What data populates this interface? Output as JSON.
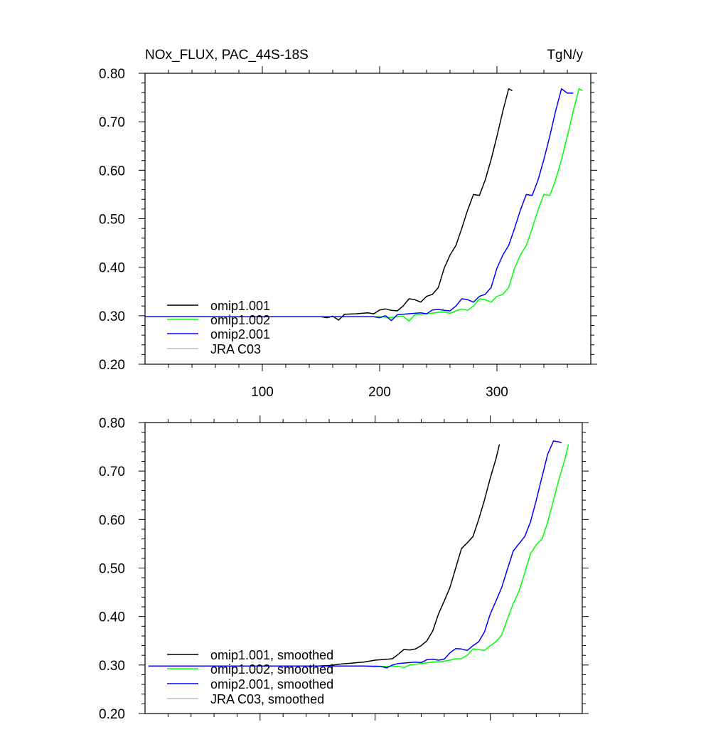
{
  "colors": {
    "omip1_001": "#000000",
    "omip1_002": "#00ff00",
    "omip2_001": "#0000ff",
    "jra_c03": "#bfbfbf"
  },
  "chart_data": [
    {
      "type": "line",
      "title": "NOx_FLUX, PAC_44S-18S",
      "units": "TgN/y",
      "xlabel": "",
      "ylabel": "",
      "xlim": [
        0,
        380
      ],
      "ylim": [
        0.2,
        0.8
      ],
      "x_ticks": [
        100,
        200,
        300
      ],
      "x_tick_labels": [
        "100",
        "200",
        "300"
      ],
      "y_ticks": [
        0.2,
        0.3,
        0.4,
        0.5,
        0.6,
        0.7,
        0.8
      ],
      "y_tick_labels": [
        "0.20",
        "0.30",
        "0.40",
        "0.50",
        "0.60",
        "0.70",
        "0.80"
      ],
      "grid": false,
      "legend_position": "bottom-left",
      "series": [
        {
          "name": "omip1.001",
          "color_key": "omip1_001",
          "points": [
            [
              0,
              0.298
            ],
            [
              150,
              0.298
            ],
            [
              155,
              0.296
            ],
            [
              160,
              0.299
            ],
            [
              165,
              0.291
            ],
            [
              170,
              0.303
            ],
            [
              180,
              0.304
            ],
            [
              190,
              0.306
            ],
            [
              195,
              0.304
            ],
            [
              200,
              0.312
            ],
            [
              205,
              0.314
            ],
            [
              210,
              0.311
            ],
            [
              215,
              0.31
            ],
            [
              220,
              0.32
            ],
            [
              225,
              0.335
            ],
            [
              230,
              0.333
            ],
            [
              235,
              0.328
            ],
            [
              240,
              0.34
            ],
            [
              245,
              0.344
            ],
            [
              250,
              0.358
            ],
            [
              255,
              0.398
            ],
            [
              260,
              0.425
            ],
            [
              265,
              0.445
            ],
            [
              270,
              0.48
            ],
            [
              275,
              0.518
            ],
            [
              280,
              0.55
            ],
            [
              285,
              0.548
            ],
            [
              290,
              0.58
            ],
            [
              295,
              0.622
            ],
            [
              300,
              0.67
            ],
            [
              305,
              0.722
            ],
            [
              310,
              0.768
            ],
            [
              313,
              0.764
            ]
          ]
        },
        {
          "name": "omip1.002",
          "color_key": "omip1_002",
          "points": [
            [
              0,
              0.298
            ],
            [
              200,
              0.298
            ],
            [
              210,
              0.296
            ],
            [
              215,
              0.298
            ],
            [
              220,
              0.299
            ],
            [
              225,
              0.289
            ],
            [
              230,
              0.302
            ],
            [
              240,
              0.304
            ],
            [
              250,
              0.307
            ],
            [
              255,
              0.308
            ],
            [
              260,
              0.305
            ],
            [
              265,
              0.31
            ],
            [
              270,
              0.314
            ],
            [
              275,
              0.311
            ],
            [
              280,
              0.32
            ],
            [
              285,
              0.335
            ],
            [
              290,
              0.333
            ],
            [
              295,
              0.328
            ],
            [
              300,
              0.34
            ],
            [
              305,
              0.344
            ],
            [
              310,
              0.358
            ],
            [
              315,
              0.398
            ],
            [
              320,
              0.425
            ],
            [
              325,
              0.445
            ],
            [
              330,
              0.48
            ],
            [
              335,
              0.518
            ],
            [
              340,
              0.55
            ],
            [
              345,
              0.548
            ],
            [
              350,
              0.58
            ],
            [
              355,
              0.622
            ],
            [
              360,
              0.67
            ],
            [
              365,
              0.722
            ],
            [
              370,
              0.768
            ],
            [
              373,
              0.764
            ]
          ]
        },
        {
          "name": "omip2.001",
          "color_key": "omip2_001",
          "points": [
            [
              0,
              0.298
            ],
            [
              195,
              0.298
            ],
            [
              200,
              0.296
            ],
            [
              205,
              0.3
            ],
            [
              210,
              0.29
            ],
            [
              215,
              0.302
            ],
            [
              220,
              0.303
            ],
            [
              230,
              0.305
            ],
            [
              235,
              0.306
            ],
            [
              240,
              0.304
            ],
            [
              245,
              0.312
            ],
            [
              250,
              0.313
            ],
            [
              255,
              0.311
            ],
            [
              260,
              0.31
            ],
            [
              265,
              0.32
            ],
            [
              270,
              0.335
            ],
            [
              275,
              0.333
            ],
            [
              280,
              0.328
            ],
            [
              285,
              0.34
            ],
            [
              290,
              0.344
            ],
            [
              295,
              0.358
            ],
            [
              300,
              0.398
            ],
            [
              305,
              0.425
            ],
            [
              310,
              0.445
            ],
            [
              315,
              0.48
            ],
            [
              320,
              0.518
            ],
            [
              325,
              0.55
            ],
            [
              330,
              0.548
            ],
            [
              335,
              0.58
            ],
            [
              340,
              0.622
            ],
            [
              345,
              0.67
            ],
            [
              350,
              0.722
            ],
            [
              355,
              0.768
            ],
            [
              360,
              0.759
            ],
            [
              365,
              0.759
            ]
          ]
        },
        {
          "name": "JRA C03",
          "color_key": "jra_c03",
          "points": []
        }
      ]
    },
    {
      "type": "line",
      "title": "",
      "xlabel": "",
      "ylabel": "",
      "xlim": [
        0,
        380
      ],
      "ylim": [
        0.2,
        0.8
      ],
      "x_ticks": [
        100,
        200,
        300
      ],
      "x_tick_labels": [],
      "y_ticks": [
        0.2,
        0.3,
        0.4,
        0.5,
        0.6,
        0.7,
        0.8
      ],
      "y_tick_labels": [
        "0.20",
        "0.30",
        "0.40",
        "0.50",
        "0.60",
        "0.70",
        "0.80"
      ],
      "grid": false,
      "legend_position": "bottom-left",
      "series": [
        {
          "name": "omip1.001, smoothed",
          "color_key": "omip1_001",
          "points": [
            [
              3,
              0.298
            ],
            [
              150,
              0.298
            ],
            [
              160,
              0.299
            ],
            [
              170,
              0.302
            ],
            [
              180,
              0.304
            ],
            [
              190,
              0.306
            ],
            [
              200,
              0.31
            ],
            [
              210,
              0.312
            ],
            [
              215,
              0.313
            ],
            [
              220,
              0.322
            ],
            [
              225,
              0.332
            ],
            [
              230,
              0.331
            ],
            [
              235,
              0.333
            ],
            [
              240,
              0.34
            ],
            [
              245,
              0.35
            ],
            [
              250,
              0.37
            ],
            [
              255,
              0.405
            ],
            [
              260,
              0.432
            ],
            [
              265,
              0.46
            ],
            [
              270,
              0.5
            ],
            [
              275,
              0.54
            ],
            [
              280,
              0.552
            ],
            [
              285,
              0.565
            ],
            [
              290,
              0.6
            ],
            [
              295,
              0.64
            ],
            [
              300,
              0.685
            ],
            [
              305,
              0.725
            ],
            [
              308,
              0.755
            ]
          ]
        },
        {
          "name": "omip1.002, smoothed",
          "color_key": "omip1_002",
          "points": [
            [
              3,
              0.298
            ],
            [
              200,
              0.298
            ],
            [
              210,
              0.297
            ],
            [
              215,
              0.298
            ],
            [
              220,
              0.297
            ],
            [
              225,
              0.295
            ],
            [
              230,
              0.3
            ],
            [
              240,
              0.303
            ],
            [
              250,
              0.306
            ],
            [
              260,
              0.308
            ],
            [
              265,
              0.31
            ],
            [
              270,
              0.313
            ],
            [
              275,
              0.313
            ],
            [
              280,
              0.32
            ],
            [
              285,
              0.333
            ],
            [
              290,
              0.332
            ],
            [
              295,
              0.33
            ],
            [
              300,
              0.34
            ],
            [
              305,
              0.348
            ],
            [
              310,
              0.362
            ],
            [
              315,
              0.395
            ],
            [
              320,
              0.427
            ],
            [
              325,
              0.452
            ],
            [
              330,
              0.49
            ],
            [
              335,
              0.53
            ],
            [
              340,
              0.548
            ],
            [
              345,
              0.56
            ],
            [
              350,
              0.595
            ],
            [
              355,
              0.64
            ],
            [
              360,
              0.685
            ],
            [
              365,
              0.725
            ],
            [
              368,
              0.755
            ]
          ]
        },
        {
          "name": "omip2.001, smoothed",
          "color_key": "omip2_001",
          "points": [
            [
              3,
              0.298
            ],
            [
              190,
              0.298
            ],
            [
              200,
              0.297
            ],
            [
              205,
              0.297
            ],
            [
              210,
              0.294
            ],
            [
              215,
              0.3
            ],
            [
              220,
              0.303
            ],
            [
              230,
              0.305
            ],
            [
              235,
              0.306
            ],
            [
              240,
              0.305
            ],
            [
              245,
              0.311
            ],
            [
              250,
              0.312
            ],
            [
              255,
              0.31
            ],
            [
              260,
              0.312
            ],
            [
              265,
              0.325
            ],
            [
              270,
              0.334
            ],
            [
              275,
              0.333
            ],
            [
              280,
              0.33
            ],
            [
              285,
              0.34
            ],
            [
              290,
              0.348
            ],
            [
              295,
              0.368
            ],
            [
              300,
              0.405
            ],
            [
              305,
              0.432
            ],
            [
              310,
              0.46
            ],
            [
              315,
              0.498
            ],
            [
              320,
              0.535
            ],
            [
              325,
              0.55
            ],
            [
              330,
              0.565
            ],
            [
              335,
              0.595
            ],
            [
              340,
              0.64
            ],
            [
              345,
              0.688
            ],
            [
              350,
              0.735
            ],
            [
              355,
              0.762
            ],
            [
              360,
              0.76
            ],
            [
              362,
              0.758
            ]
          ]
        },
        {
          "name": "JRA C03, smoothed",
          "color_key": "jra_c03",
          "points": []
        }
      ]
    }
  ]
}
